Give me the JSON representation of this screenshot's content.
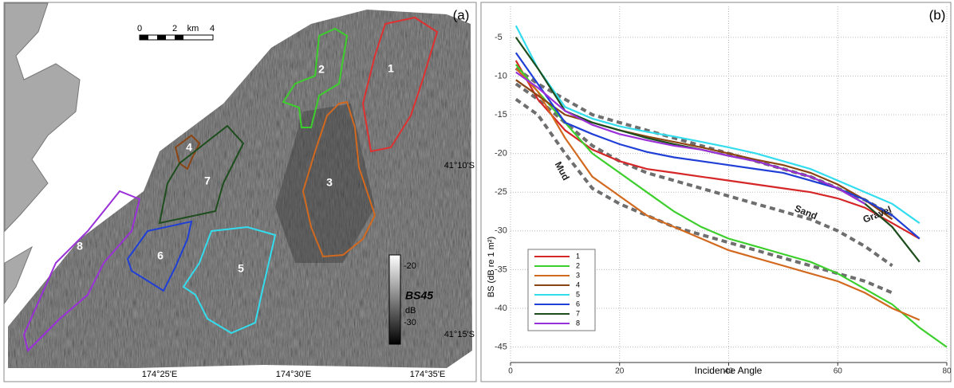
{
  "map": {
    "panel_label": "(a)",
    "scale_bar": [
      "0",
      "2",
      "km",
      "4"
    ],
    "colorbar": {
      "title": "BS45",
      "labels": [
        "-20",
        "dB",
        "-30"
      ]
    },
    "latitude_labels": [
      "41°10'S",
      "41°15'S"
    ],
    "longitude_labels": [
      "174°25'E",
      "174°30'E",
      "174°35'E"
    ],
    "regions": [
      "1",
      "2",
      "3",
      "4",
      "5",
      "6",
      "7",
      "8"
    ]
  },
  "chart_data": {
    "type": "line",
    "panel_label": "(b)",
    "x_label": "Incidence Angle",
    "y_label": "BS (dB re 1 m²)",
    "x": [
      1,
      5,
      10,
      15,
      20,
      25,
      30,
      35,
      40,
      45,
      50,
      55,
      60,
      65,
      70,
      75,
      80
    ],
    "series": [
      {
        "name": "1",
        "color": "#d62728",
        "values": [
          -8,
          -13,
          -17,
          -19.5,
          -21,
          -22,
          -22.5,
          -23,
          -23.5,
          -24,
          -24.5,
          -25,
          -25.8,
          -27,
          -29,
          -31,
          null
        ]
      },
      {
        "name": "2",
        "color": "#3ccf2c",
        "values": [
          -8.5,
          -12,
          -16,
          -20,
          -22.5,
          -25,
          -27.5,
          -29.5,
          -31,
          -32,
          -33,
          -34,
          -35.5,
          -37.5,
          -39.5,
          -42.5,
          -45
        ]
      },
      {
        "name": "3",
        "color": "#d2691e",
        "values": [
          -9,
          -12,
          -18,
          -23,
          -25.5,
          -28,
          -29.5,
          -31,
          -32.5,
          -33.5,
          -34.5,
          -35.5,
          -36.5,
          -38,
          -40,
          -41.5,
          null
        ]
      },
      {
        "name": "4",
        "color": "#8b4513",
        "values": [
          -10.5,
          -12.5,
          -15,
          -16,
          -17,
          -17.8,
          -18.5,
          -19.2,
          -20,
          -20.8,
          -21.5,
          -22.5,
          -24,
          -26,
          -28.5,
          null,
          null
        ]
      },
      {
        "name": "5",
        "color": "#33ddee",
        "values": [
          -3.5,
          -9,
          -14,
          -15.5,
          -16.5,
          -17.2,
          -17.8,
          -18.5,
          -19.2,
          -20,
          -21,
          -22,
          -23.5,
          -25,
          -26.5,
          -29,
          null
        ]
      },
      {
        "name": "6",
        "color": "#1f3fd6",
        "values": [
          -7,
          -11,
          -16,
          -17.5,
          -18.8,
          -19.8,
          -20.5,
          -21,
          -21.5,
          -22,
          -22.5,
          -23.5,
          -24.5,
          -26,
          -28,
          -31,
          null
        ]
      },
      {
        "name": "7",
        "color": "#1d4d1d",
        "values": [
          -5,
          -9,
          -14.5,
          -16,
          -17,
          -18,
          -18.8,
          -19.5,
          -20.3,
          -21,
          -22,
          -23,
          -24.5,
          -26.5,
          -29.5,
          -34,
          null
        ]
      },
      {
        "name": "8",
        "color": "#9b30d9",
        "values": [
          -9.5,
          -11.5,
          -14.5,
          -16.3,
          -17.5,
          -18.3,
          -19,
          -19.5,
          -20.3,
          -21,
          -22,
          -23,
          -24.5,
          -26.5,
          null,
          null,
          null
        ]
      }
    ],
    "reference_curves": [
      {
        "name": "Mud",
        "values": [
          -13,
          -15,
          -20,
          -24.5,
          -26.5,
          -28,
          -29.5,
          -30.5,
          -31.5,
          -32.5,
          -33.5,
          -34.5,
          -35.5,
          -36.5,
          -38,
          null,
          null
        ]
      },
      {
        "name": "Sand",
        "values": [
          -11,
          -13,
          -16,
          -19,
          -21,
          -22.5,
          -23.5,
          -24.5,
          -25.5,
          -26.5,
          -27.5,
          -28.5,
          -30,
          -32,
          -34.5,
          null,
          null
        ]
      },
      {
        "name": "Gravel",
        "values": [
          -9,
          -11,
          -13,
          -15,
          -16,
          -17,
          -18,
          -19,
          -20,
          -21,
          -22,
          -23,
          -24.5,
          -26,
          -28,
          null,
          null
        ]
      }
    ],
    "reference_color": "#6e6e6e",
    "xlim": [
      0,
      80
    ],
    "ylim": [
      -47,
      -1
    ],
    "xticks": [
      0,
      20,
      40,
      60,
      80
    ],
    "yticks": [
      -5,
      -10,
      -15,
      -20,
      -25,
      -30,
      -35,
      -40,
      -45
    ],
    "grid": true,
    "legend": "lower left"
  }
}
